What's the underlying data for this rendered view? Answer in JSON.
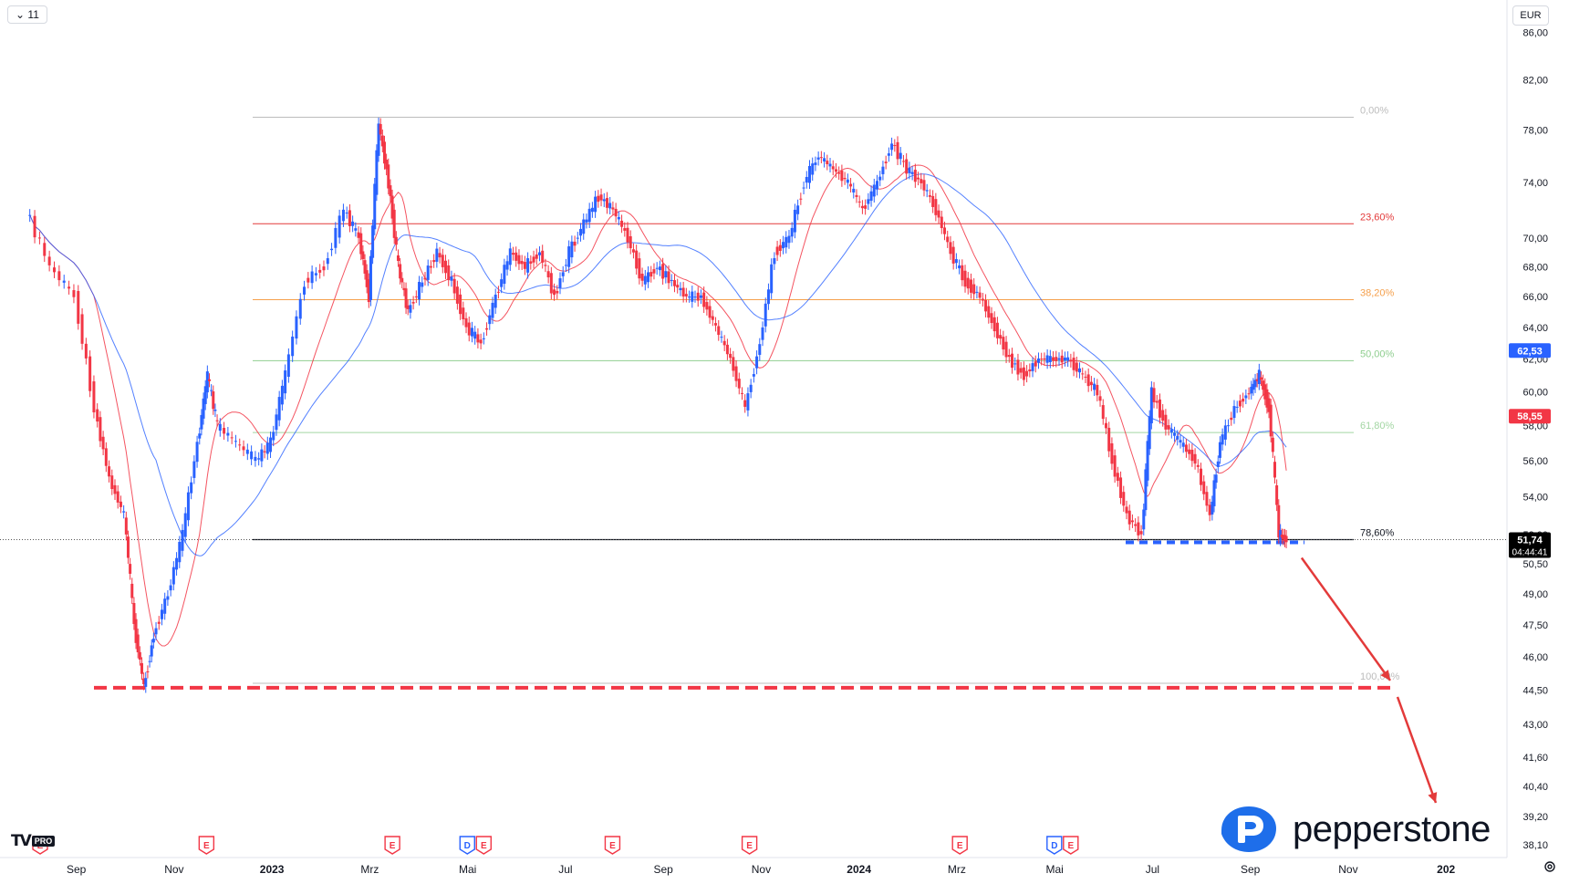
{
  "toolbar": {
    "interval_label": "11",
    "currency_label": "EUR"
  },
  "brand": {
    "tv_mark": "TV",
    "tv_badge": "PRO",
    "pepperstone_word": "pepperstone"
  },
  "chart_data": {
    "type": "candlestick",
    "title": "",
    "xlabel": "",
    "ylabel": "",
    "ylim": [
      37.9,
      88.2
    ],
    "y_scale": "log",
    "grid": false,
    "price_axis": [
      {
        "value": 86.0,
        "label": "86,00"
      },
      {
        "value": 82.0,
        "label": "82,00"
      },
      {
        "value": 78.0,
        "label": "78,00"
      },
      {
        "value": 74.0,
        "label": "74,00"
      },
      {
        "value": 70.0,
        "label": "70,00"
      },
      {
        "value": 68.0,
        "label": "68,00"
      },
      {
        "value": 66.0,
        "label": "66,00"
      },
      {
        "value": 64.0,
        "label": "64,00"
      },
      {
        "value": 62.0,
        "label": "62,00"
      },
      {
        "value": 60.0,
        "label": "60,00"
      },
      {
        "value": 58.0,
        "label": "58,00"
      },
      {
        "value": 56.0,
        "label": "56,00"
      },
      {
        "value": 54.0,
        "label": "54,00"
      },
      {
        "value": 52.0,
        "label": "52,00"
      },
      {
        "value": 50.5,
        "label": "50,50"
      },
      {
        "value": 49.0,
        "label": "49,00"
      },
      {
        "value": 47.5,
        "label": "47,50"
      },
      {
        "value": 46.0,
        "label": "46,00"
      },
      {
        "value": 44.5,
        "label": "44,50"
      },
      {
        "value": 43.0,
        "label": "43,00"
      },
      {
        "value": 41.6,
        "label": "41,60"
      },
      {
        "value": 40.4,
        "label": "40,40"
      },
      {
        "value": 39.2,
        "label": "39,20"
      },
      {
        "value": 38.1,
        "label": "38,10"
      }
    ],
    "time_axis": [
      {
        "t": 1.0,
        "label": "Sep",
        "bold": false
      },
      {
        "t": 3.0,
        "label": "Nov",
        "bold": false
      },
      {
        "t": 5.0,
        "label": "2023",
        "bold": true
      },
      {
        "t": 7.0,
        "label": "Mrz",
        "bold": false
      },
      {
        "t": 9.0,
        "label": "Mai",
        "bold": false
      },
      {
        "t": 11.0,
        "label": "Jul",
        "bold": false
      },
      {
        "t": 13.0,
        "label": "Sep",
        "bold": false
      },
      {
        "t": 15.0,
        "label": "Nov",
        "bold": false
      },
      {
        "t": 17.0,
        "label": "2024",
        "bold": true
      },
      {
        "t": 19.0,
        "label": "Mrz",
        "bold": false
      },
      {
        "t": 21.0,
        "label": "Mai",
        "bold": false
      },
      {
        "t": 23.0,
        "label": "Jul",
        "bold": false
      },
      {
        "t": 25.0,
        "label": "Sep",
        "bold": false
      },
      {
        "t": 27.0,
        "label": "Nov",
        "bold": false
      },
      {
        "t": 29.0,
        "label": "202",
        "bold": true
      }
    ],
    "fibonacci": [
      {
        "level": "0,00%",
        "price": 79.0,
        "color": "#bcbcbc"
      },
      {
        "level": "23,60%",
        "price": 71.0,
        "color": "#e33a3a"
      },
      {
        "level": "38,20%",
        "price": 65.8,
        "color": "#f5a04c"
      },
      {
        "level": "50,00%",
        "price": 61.9,
        "color": "#8fce8f"
      },
      {
        "level": "61,80%",
        "price": 57.6,
        "color": "#a3d6a3"
      },
      {
        "level": "78,60%",
        "price": 51.74,
        "color": "#131722"
      },
      {
        "level": "100,00%",
        "price": 44.8,
        "color": "#bcbcbc"
      }
    ],
    "price_tags": [
      {
        "value": 62.53,
        "label": "62,53",
        "color": "#2962ff"
      },
      {
        "value": 58.55,
        "label": "58,55",
        "color": "#f23645"
      },
      {
        "value": 51.74,
        "label": "51,74",
        "sub": "04:44:41",
        "color": "#000000"
      }
    ],
    "earnings_markers": [
      {
        "t": 0.0,
        "labels": [
          "E"
        ]
      },
      {
        "t": 3.4,
        "labels": [
          "E"
        ]
      },
      {
        "t": 7.2,
        "labels": [
          "E"
        ]
      },
      {
        "t": 8.9,
        "labels": [
          "D",
          "E"
        ]
      },
      {
        "t": 11.7,
        "labels": [
          "E"
        ]
      },
      {
        "t": 14.5,
        "labels": [
          "E"
        ]
      },
      {
        "t": 18.8,
        "labels": [
          "E"
        ]
      },
      {
        "t": 20.9,
        "labels": [
          "D",
          "E"
        ]
      }
    ],
    "support_level": 44.6,
    "series_path": [
      [
        0.0,
        72
      ],
      [
        0.5,
        68
      ],
      [
        1.0,
        66
      ],
      [
        1.4,
        59
      ],
      [
        1.7,
        55
      ],
      [
        2.0,
        53
      ],
      [
        2.2,
        47.5
      ],
      [
        2.4,
        44.6
      ],
      [
        2.6,
        47
      ],
      [
        2.9,
        49
      ],
      [
        3.2,
        52
      ],
      [
        3.5,
        57
      ],
      [
        3.7,
        61
      ],
      [
        3.9,
        58
      ],
      [
        4.3,
        57
      ],
      [
        4.7,
        56
      ],
      [
        5.0,
        57
      ],
      [
        5.3,
        61
      ],
      [
        5.7,
        67
      ],
      [
        6.1,
        68
      ],
      [
        6.5,
        72
      ],
      [
        6.8,
        70
      ],
      [
        7.0,
        66
      ],
      [
        7.2,
        78.5
      ],
      [
        7.4,
        74
      ],
      [
        7.6,
        68
      ],
      [
        7.8,
        65
      ],
      [
        8.1,
        67
      ],
      [
        8.4,
        69
      ],
      [
        8.7,
        67
      ],
      [
        9.0,
        64
      ],
      [
        9.3,
        63
      ],
      [
        9.6,
        66
      ],
      [
        9.9,
        69
      ],
      [
        10.2,
        68
      ],
      [
        10.5,
        69
      ],
      [
        10.8,
        66
      ],
      [
        11.1,
        69
      ],
      [
        11.4,
        71
      ],
      [
        11.7,
        73
      ],
      [
        12.0,
        72
      ],
      [
        12.3,
        70
      ],
      [
        12.6,
        67
      ],
      [
        12.9,
        68
      ],
      [
        13.2,
        67
      ],
      [
        13.5,
        66
      ],
      [
        13.8,
        66
      ],
      [
        14.1,
        64
      ],
      [
        14.4,
        62
      ],
      [
        14.7,
        59
      ],
      [
        15.0,
        63
      ],
      [
        15.3,
        69
      ],
      [
        15.6,
        70
      ],
      [
        15.9,
        74
      ],
      [
        16.2,
        76
      ],
      [
        16.5,
        75
      ],
      [
        16.8,
        74
      ],
      [
        17.1,
        72
      ],
      [
        17.4,
        74
      ],
      [
        17.7,
        77
      ],
      [
        18.0,
        75
      ],
      [
        18.3,
        74
      ],
      [
        18.6,
        72
      ],
      [
        18.9,
        69
      ],
      [
        19.2,
        67
      ],
      [
        19.5,
        66
      ],
      [
        19.8,
        64
      ],
      [
        20.1,
        62
      ],
      [
        20.4,
        61
      ],
      [
        20.7,
        62
      ],
      [
        21.0,
        62
      ],
      [
        21.3,
        62
      ],
      [
        21.6,
        61
      ],
      [
        21.9,
        60
      ],
      [
        22.2,
        56
      ],
      [
        22.5,
        53
      ],
      [
        22.8,
        52
      ],
      [
        23.0,
        60
      ],
      [
        23.3,
        58
      ],
      [
        23.6,
        57
      ],
      [
        23.9,
        56
      ],
      [
        24.2,
        53
      ],
      [
        24.4,
        57
      ],
      [
        24.7,
        59
      ],
      [
        25.0,
        60
      ],
      [
        25.2,
        61
      ],
      [
        25.4,
        59
      ],
      [
        25.6,
        52
      ],
      [
        25.75,
        51.74
      ]
    ]
  }
}
